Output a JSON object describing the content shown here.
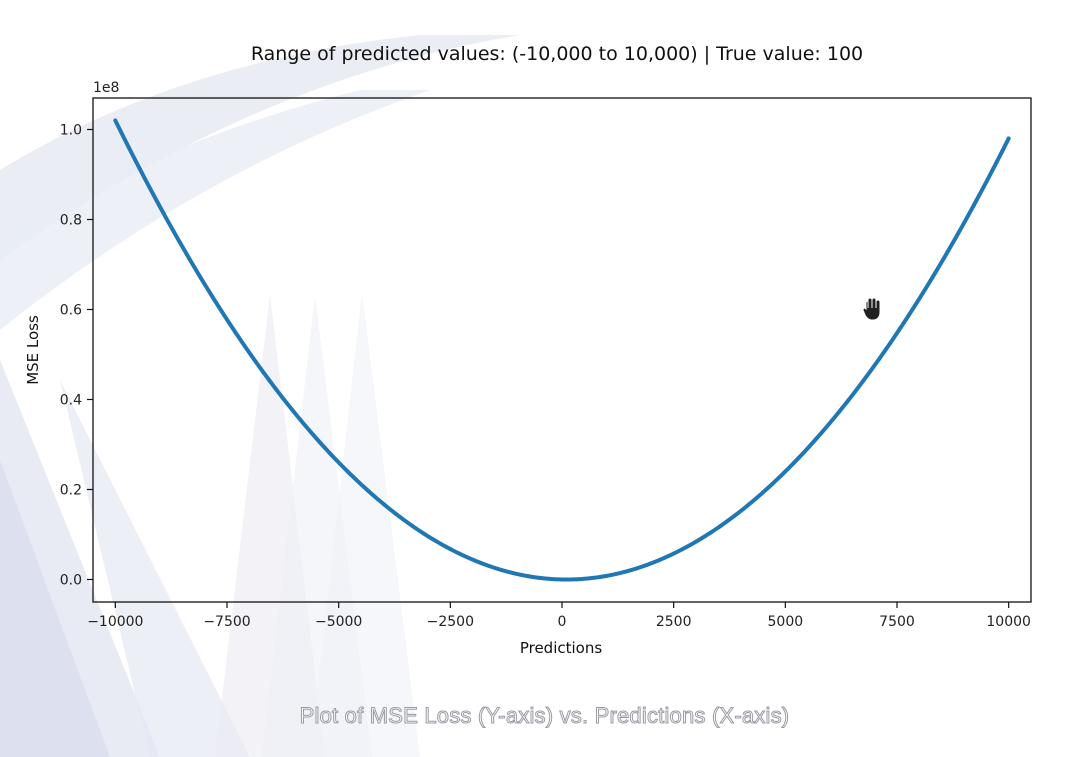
{
  "chart_data": {
    "type": "line",
    "title": "Range of predicted values: (-10,000 to 10,000) | True value: 100",
    "xlabel": "Predictions",
    "ylabel": "MSE Loss",
    "y_offset_label": "1e8",
    "xlim": [
      -10500,
      10500
    ],
    "ylim": [
      -0.05,
      1.07
    ],
    "x_ticks": [
      -10000,
      -7500,
      -5000,
      -2500,
      0,
      2500,
      5000,
      7500,
      10000
    ],
    "y_ticks": [
      0.0,
      0.2,
      0.4,
      0.6,
      0.8,
      1.0
    ],
    "y_tick_labels": [
      "0.0",
      "0.2",
      "0.4",
      "0.6",
      "0.8",
      "1.0"
    ],
    "true_value": 100,
    "series": [
      {
        "name": "MSE Loss",
        "color": "#1f77b4",
        "x": [
          -10000,
          -7500,
          -5000,
          -2500,
          0,
          100,
          2500,
          5000,
          7500,
          10000
        ],
        "y": [
          1.0201,
          0.5776,
          0.2601,
          0.0676,
          0.0001,
          0.0,
          0.0576,
          0.2401,
          0.5476,
          0.9801
        ]
      }
    ]
  },
  "caption": "Plot of MSE Loss (Y-axis) vs. Predictions (X-axis)",
  "colors": {
    "line": "#1f77b4",
    "background_shapes": "#dde1ee"
  },
  "cursor_icon": "hand-grab-icon"
}
